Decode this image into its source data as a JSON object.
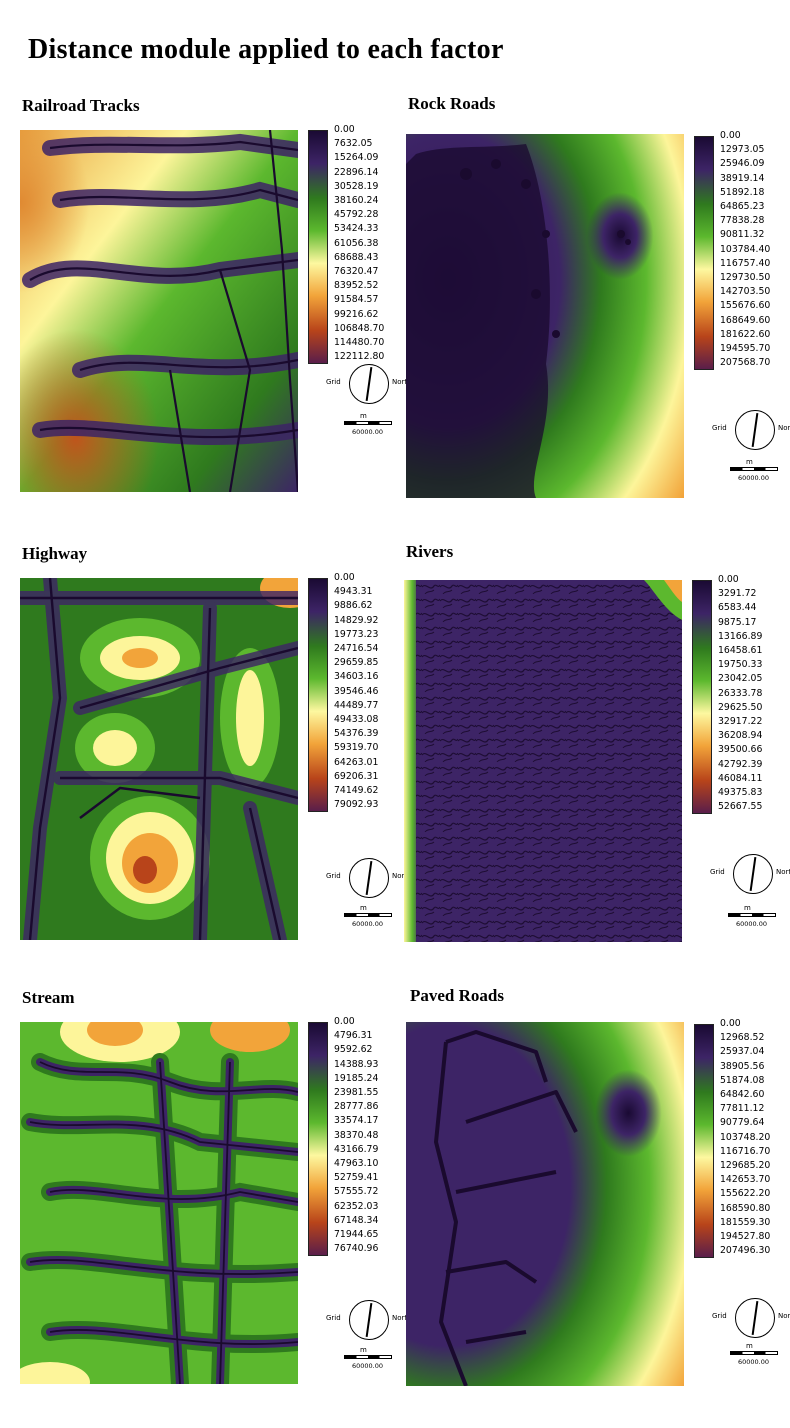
{
  "title": "Distance module applied to each factor",
  "colors": {
    "legend_gradient": [
      "#1a0a33",
      "#3d2466",
      "#2f7a1e",
      "#5cb82e",
      "#fdf8a0",
      "#f2a43a",
      "#b8441a",
      "#5a1e4a"
    ],
    "line": "#1a0a2e"
  },
  "compass": {
    "grid_label": "Grid",
    "north_label": "North"
  },
  "scale": {
    "unit": "m",
    "value": "60000.00"
  },
  "panels": [
    {
      "title": "Railroad Tracks",
      "legend": [
        "0.00",
        "7632.05",
        "15264.09",
        "22896.14",
        "30528.19",
        "38160.24",
        "45792.28",
        "53424.33",
        "61056.38",
        "68688.43",
        "76320.47",
        "83952.52",
        "91584.57",
        "99216.62",
        "106848.70",
        "114480.70",
        "122112.80"
      ]
    },
    {
      "title": "Rock Roads",
      "legend": [
        "0.00",
        "12973.05",
        "25946.09",
        "38919.14",
        "51892.18",
        "64865.23",
        "77838.28",
        "90811.32",
        "103784.40",
        "116757.40",
        "129730.50",
        "142703.50",
        "155676.60",
        "168649.60",
        "181622.60",
        "194595.70",
        "207568.70"
      ]
    },
    {
      "title": "Highway",
      "legend": [
        "0.00",
        "4943.31",
        "9886.62",
        "14829.92",
        "19773.23",
        "24716.54",
        "29659.85",
        "34603.16",
        "39546.46",
        "44489.77",
        "49433.08",
        "54376.39",
        "59319.70",
        "64263.01",
        "69206.31",
        "74149.62",
        "79092.93"
      ]
    },
    {
      "title": "Rivers",
      "legend": [
        "0.00",
        "3291.72",
        "6583.44",
        "9875.17",
        "13166.89",
        "16458.61",
        "19750.33",
        "23042.05",
        "26333.78",
        "29625.50",
        "32917.22",
        "36208.94",
        "39500.66",
        "42792.39",
        "46084.11",
        "49375.83",
        "52667.55"
      ]
    },
    {
      "title": "Stream",
      "legend": [
        "0.00",
        "4796.31",
        "9592.62",
        "14388.93",
        "19185.24",
        "23981.55",
        "28777.86",
        "33574.17",
        "38370.48",
        "43166.79",
        "47963.10",
        "52759.41",
        "57555.72",
        "62352.03",
        "67148.34",
        "71944.65",
        "76740.96"
      ]
    },
    {
      "title": "Paved Roads",
      "legend": [
        "0.00",
        "12968.52",
        "25937.04",
        "38905.56",
        "51874.08",
        "64842.60",
        "77811.12",
        "90779.64",
        "103748.20",
        "116716.70",
        "129685.20",
        "142653.70",
        "155622.20",
        "168590.80",
        "181559.30",
        "194527.80",
        "207496.30"
      ]
    }
  ]
}
